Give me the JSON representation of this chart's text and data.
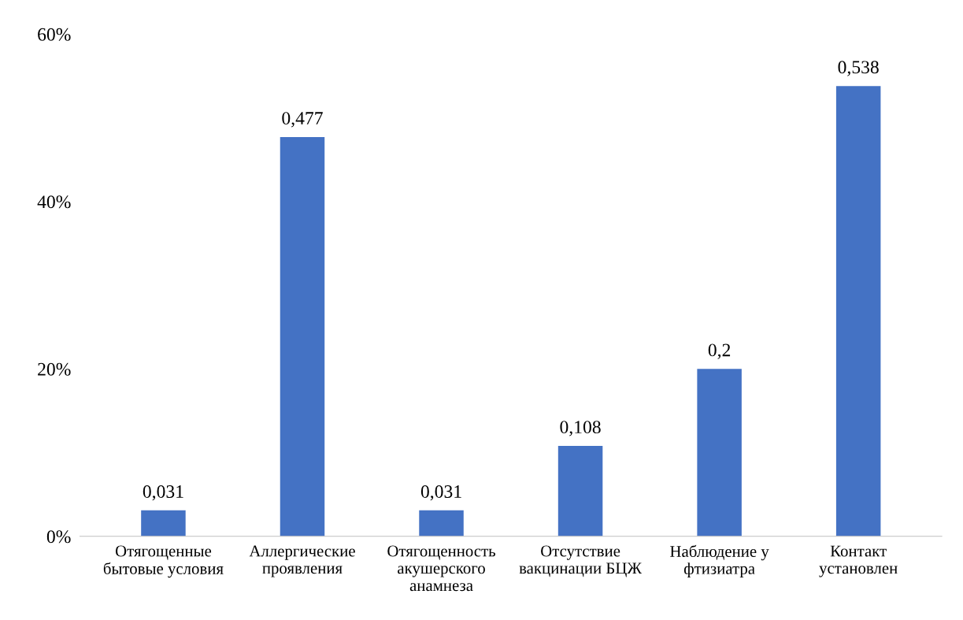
{
  "chart_data": {
    "type": "bar",
    "categories": [
      "Отягощенные\nбытовые условия",
      "Аллергические\nпроявления",
      "Отягощенность\nакушерского\nанамнеза",
      "Отсутствие\nвакцинации БЦЖ",
      "Наблюдение у\nфтизиатра",
      "Контакт\nустановлен"
    ],
    "values": [
      0.031,
      0.477,
      0.031,
      0.108,
      0.2,
      0.538
    ],
    "value_labels": [
      "0,031",
      "0,477",
      "0,031",
      "0,108",
      "0,2",
      "0,538"
    ],
    "color": "#4472c4",
    "ylim": [
      0,
      0.6
    ],
    "yticks": [
      {
        "value": 0,
        "label": "0%"
      },
      {
        "value": 0.2,
        "label": "20%"
      },
      {
        "value": 0.4,
        "label": "40%"
      },
      {
        "value": 0.6,
        "label": "60%"
      }
    ],
    "grid": false,
    "legend": false
  }
}
